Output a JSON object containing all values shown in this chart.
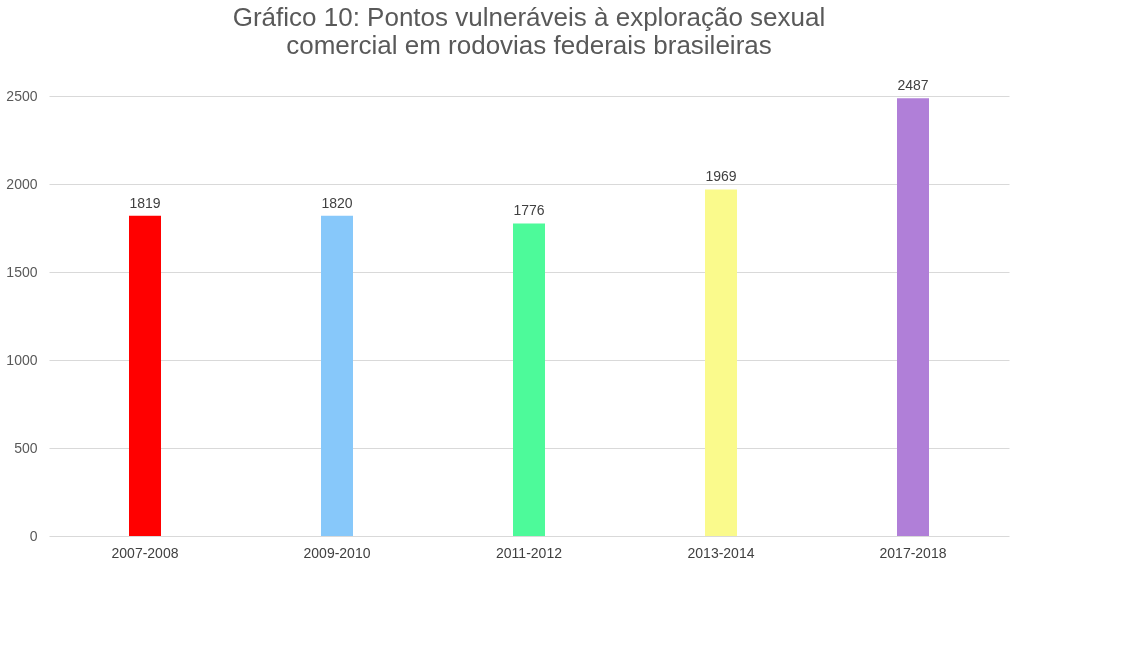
{
  "chart_data": {
    "type": "bar",
    "title": "Gráfico 10: Pontos vulneráveis à exploração sexual\ncomercial em rodovias federais brasileiras",
    "categories": [
      "2007-2008",
      "2009-2010",
      "2011-2012",
      "2013-2014",
      "2017-2018"
    ],
    "values": [
      1819,
      1820,
      1776,
      1969,
      2487
    ],
    "colors": [
      "#ff0000",
      "#87c8fa",
      "#4dfa9a",
      "#fafa8c",
      "#b07fd8"
    ],
    "ylim": [
      0,
      2500
    ],
    "yticks": [
      0,
      500,
      1000,
      1500,
      2000,
      2500
    ],
    "grid": "y",
    "data_labels": true
  }
}
